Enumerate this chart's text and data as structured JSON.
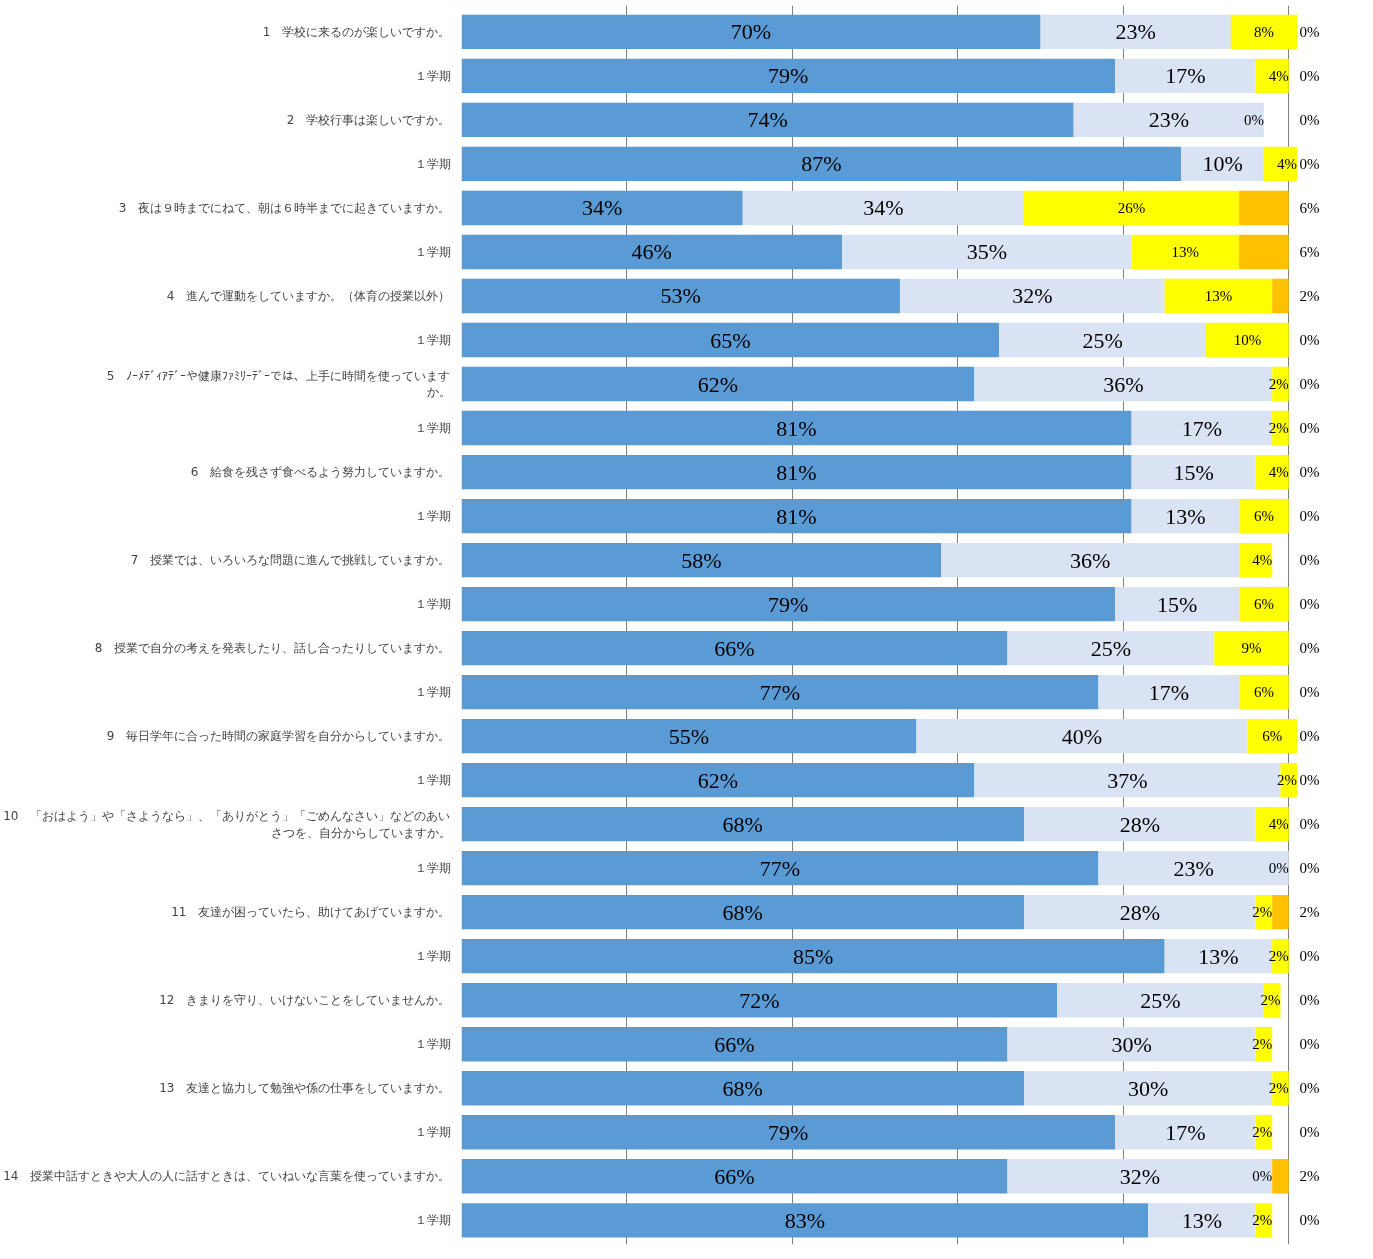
{
  "chart_data": {
    "type": "bar",
    "orientation": "horizontal",
    "stacked": true,
    "grid": "x",
    "tick_labels": "y",
    "categories": [
      "1　学校に来るのが楽しいですか。",
      "１学期",
      "2　学校行事は楽しいですか。",
      "１学期",
      "3　夜は９時までにねて、朝は６時半までに起きていますか。",
      "１学期",
      "4　進んで運動をしていますか。（体育の授業以外）",
      "１学期",
      "5　ﾉｰﾒﾃﾞｨｱﾃﾞｰや健康ﾌｧﾐﾘｰﾃﾞｰでは、上手に時間を使っていますか。",
      "１学期",
      "6　給食を残さず食べるよう努力していますか。",
      "１学期",
      "7　授業では、いろいろな問題に進んで挑戦していますか。",
      "１学期",
      "8　授業で自分の考えを発表したり、話し合ったりしていますか。",
      "１学期",
      "9　毎日学年に合った時間の家庭学習を自分からしていますか。",
      "１学期",
      "10　「おはよう」や「さようなら」、「ありがとう」「ごめんなさい」などのあいさつを、自分からしていますか。",
      "１学期",
      "11　友達が困っていたら、助けてあげていますか。",
      "１学期",
      "12　きまりを守り、いけないことをしていませんか。",
      "１学期",
      "13　友達と協力して勉強や係の仕事をしていますか。",
      "１学期",
      "14　授業中話すときや大人の人に話すときは、ていねいな言葉を使っていますか。",
      "１学期"
    ],
    "series": [
      {
        "color": "#5b9bd5",
        "values": [
          70,
          79,
          74,
          87,
          34,
          46,
          53,
          65,
          62,
          81,
          81,
          81,
          58,
          79,
          66,
          77,
          55,
          62,
          68,
          77,
          68,
          85,
          72,
          66,
          68,
          79,
          66,
          83
        ],
        "value_labels": [
          "70%",
          "79%",
          "74%",
          "87%",
          "34%",
          "46%",
          "53%",
          "65%",
          "62%",
          "81%",
          "81%",
          "81%",
          "58%",
          "79%",
          "66%",
          "77%",
          "55%",
          "62%",
          "68%",
          "77%",
          "68%",
          "85%",
          "72%",
          "66%",
          "68%",
          "79%",
          "66%",
          "83%"
        ]
      },
      {
        "color": "#dae3f3",
        "values": [
          23,
          17,
          23,
          10,
          34,
          35,
          32,
          25,
          36,
          17,
          15,
          13,
          36,
          15,
          25,
          17,
          40,
          37,
          28,
          23,
          28,
          13,
          25,
          30,
          30,
          17,
          32,
          13
        ],
        "value_labels": [
          "23%",
          "17%",
          "23%",
          "10%",
          "34%",
          "35%",
          "32%",
          "25%",
          "36%",
          "17%",
          "15%",
          "13%",
          "36%",
          "15%",
          "25%",
          "17%",
          "40%",
          "37%",
          "28%",
          "23%",
          "28%",
          "13%",
          "25%",
          "30%",
          "30%",
          "17%",
          "32%",
          "13%"
        ]
      },
      {
        "color": "#ffff00",
        "values": [
          8,
          4,
          0,
          4,
          26,
          13,
          13,
          10,
          2,
          2,
          4,
          6,
          4,
          6,
          9,
          6,
          6,
          2,
          4,
          0,
          2,
          2,
          2,
          2,
          2,
          2,
          0,
          2
        ],
        "value_labels": [
          "8%",
          "4%",
          "0%",
          "4%",
          "26%",
          "13%",
          "13%",
          "10%",
          "2%",
          "2%",
          "4%",
          "6%",
          "4%",
          "6%",
          "9%",
          "6%",
          "6%",
          "2%",
          "4%",
          "0%",
          "2%",
          "2%",
          "2%",
          "2%",
          "2%",
          "2%",
          "0%",
          "2%"
        ]
      },
      {
        "color": "#ffc000",
        "values": [
          0,
          0,
          0,
          0,
          6,
          6,
          2,
          0,
          0,
          0,
          0,
          0,
          0,
          0,
          0,
          0,
          0,
          0,
          0,
          0,
          2,
          0,
          0,
          0,
          0,
          0,
          2,
          0
        ],
        "value_labels": [
          "0%",
          "0%",
          "0%",
          "0%",
          "6%",
          "6%",
          "2%",
          "0%",
          "0%",
          "0%",
          "0%",
          "0%",
          "0%",
          "0%",
          "0%",
          "0%",
          "0%",
          "0%",
          "0%",
          "0%",
          "2%",
          "0%",
          "0%",
          "0%",
          "0%",
          "0%",
          "2%",
          "0%"
        ]
      }
    ]
  }
}
